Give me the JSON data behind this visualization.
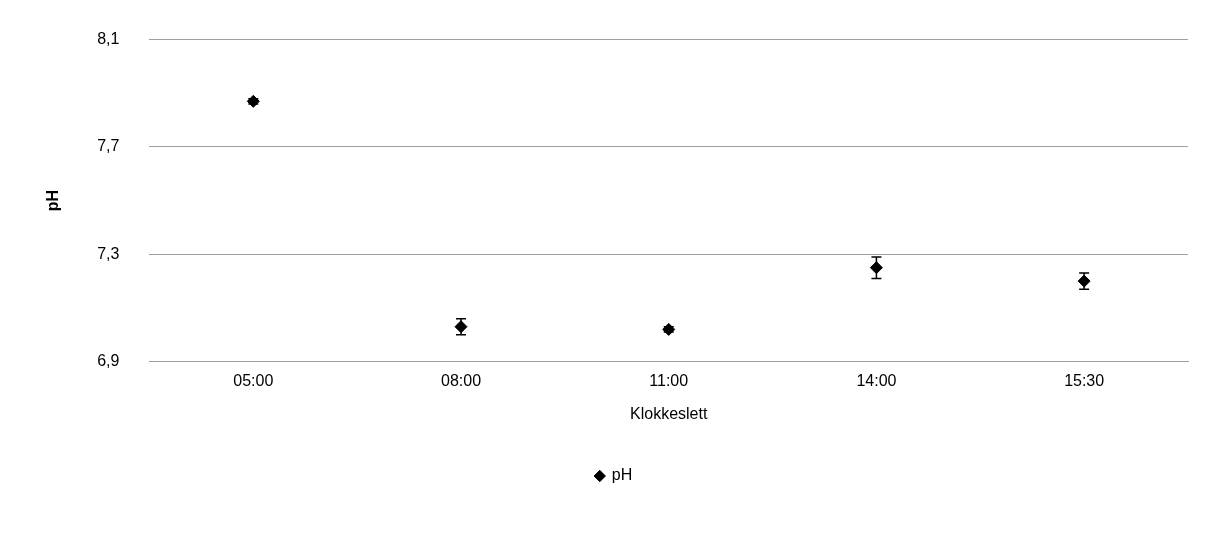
{
  "chart_data": {
    "type": "scatter",
    "xlabel": "Klokkeslett",
    "ylabel": "pH",
    "categories": [
      "05:00",
      "08:00",
      "11:00",
      "14:00",
      "15:30"
    ],
    "series": [
      {
        "name": "pH",
        "color": "#000000",
        "values": [
          7.87,
          7.03,
          7.02,
          7.25,
          7.2
        ],
        "errors": [
          0.01,
          0.03,
          0.01,
          0.04,
          0.03
        ]
      }
    ],
    "ylim": [
      6.9,
      8.1
    ],
    "yticks": [
      {
        "value": 6.9,
        "label": "6,9"
      },
      {
        "value": 7.3,
        "label": "7,3"
      },
      {
        "value": 7.7,
        "label": "7,7"
      },
      {
        "value": 8.1,
        "label": "8,1"
      }
    ],
    "grid": "y",
    "legend": "bottom",
    "marker": "diamond"
  }
}
